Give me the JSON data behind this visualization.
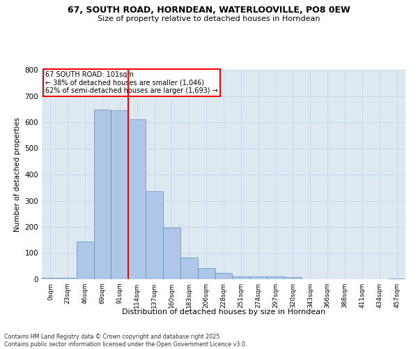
{
  "title_line1": "67, SOUTH ROAD, HORNDEAN, WATERLOOVILLE, PO8 0EW",
  "title_line2": "Size of property relative to detached houses in Horndean",
  "xlabel": "Distribution of detached houses by size in Horndean",
  "ylabel": "Number of detached properties",
  "footnote": "Contains HM Land Registry data © Crown copyright and database right 2025.\nContains public sector information licensed under the Open Government Licence v3.0.",
  "bar_labels": [
    "0sqm",
    "23sqm",
    "46sqm",
    "69sqm",
    "91sqm",
    "114sqm",
    "137sqm",
    "160sqm",
    "183sqm",
    "206sqm",
    "228sqm",
    "251sqm",
    "274sqm",
    "297sqm",
    "320sqm",
    "343sqm",
    "366sqm",
    "388sqm",
    "411sqm",
    "434sqm",
    "457sqm"
  ],
  "bar_values": [
    5,
    5,
    145,
    648,
    645,
    610,
    335,
    198,
    83,
    43,
    25,
    10,
    12,
    10,
    8,
    0,
    0,
    0,
    0,
    0,
    4
  ],
  "bar_color": "#aec6e8",
  "bar_edge_color": "#5a8fc0",
  "vline_x": 4.5,
  "marker_label": "67 SOUTH ROAD: 101sqm\n← 38% of detached houses are smaller (1,046)\n62% of semi-detached houses are larger (1,693) →",
  "vline_color": "red",
  "annotation_box_color": "red",
  "ylim": [
    0,
    800
  ],
  "yticks": [
    0,
    100,
    200,
    300,
    400,
    500,
    600,
    700,
    800
  ],
  "grid_color": "#c8d8e8",
  "background_color": "#dde8f0"
}
